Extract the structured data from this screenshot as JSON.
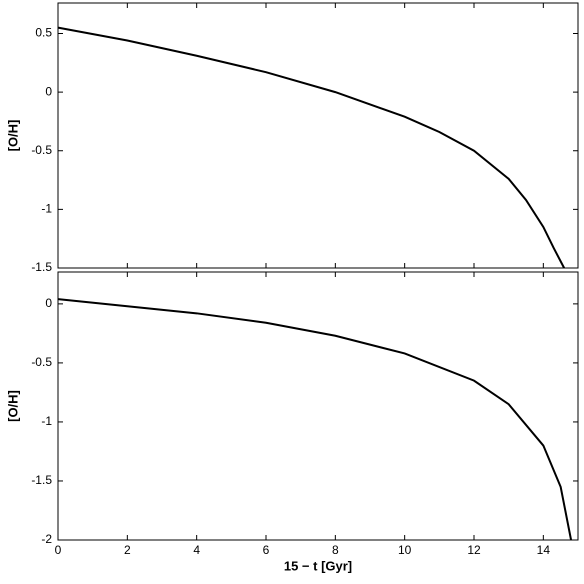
{
  "chart_data": [
    {
      "type": "line",
      "ylabel": "[O/H]",
      "x": [
        0,
        2,
        4,
        6,
        8,
        10,
        11,
        12,
        13,
        13.5,
        14,
        14.3,
        14.6
      ],
      "series": [
        {
          "color": "#000000",
          "values": [
            0.55,
            0.44,
            0.31,
            0.17,
            0.0,
            -0.21,
            -0.34,
            -0.5,
            -0.74,
            -0.92,
            -1.15,
            -1.33,
            -1.5
          ]
        }
      ],
      "xlim": [
        0,
        15
      ],
      "ylim": [
        -1.5,
        0.76
      ],
      "xticks": [
        0,
        2,
        4,
        6,
        8,
        10,
        12,
        14
      ],
      "yticks": [
        -1.5,
        -1,
        -0.5,
        0,
        0.5
      ]
    },
    {
      "type": "line",
      "ylabel": "[O/H]",
      "xlabel": "15 − t [Gyr]",
      "x": [
        0,
        2,
        4,
        6,
        8,
        10,
        12,
        13,
        14,
        14.5,
        14.8
      ],
      "series": [
        {
          "color": "#000000",
          "values": [
            0.04,
            -0.02,
            -0.08,
            -0.16,
            -0.27,
            -0.42,
            -0.65,
            -0.85,
            -1.2,
            -1.55,
            -2.0
          ]
        }
      ],
      "xlim": [
        0,
        15
      ],
      "ylim": [
        -2,
        0.27
      ],
      "xticks": [
        0,
        2,
        4,
        6,
        8,
        10,
        12,
        14
      ],
      "yticks": [
        -2,
        -1.5,
        -1,
        -0.5,
        0
      ]
    }
  ]
}
